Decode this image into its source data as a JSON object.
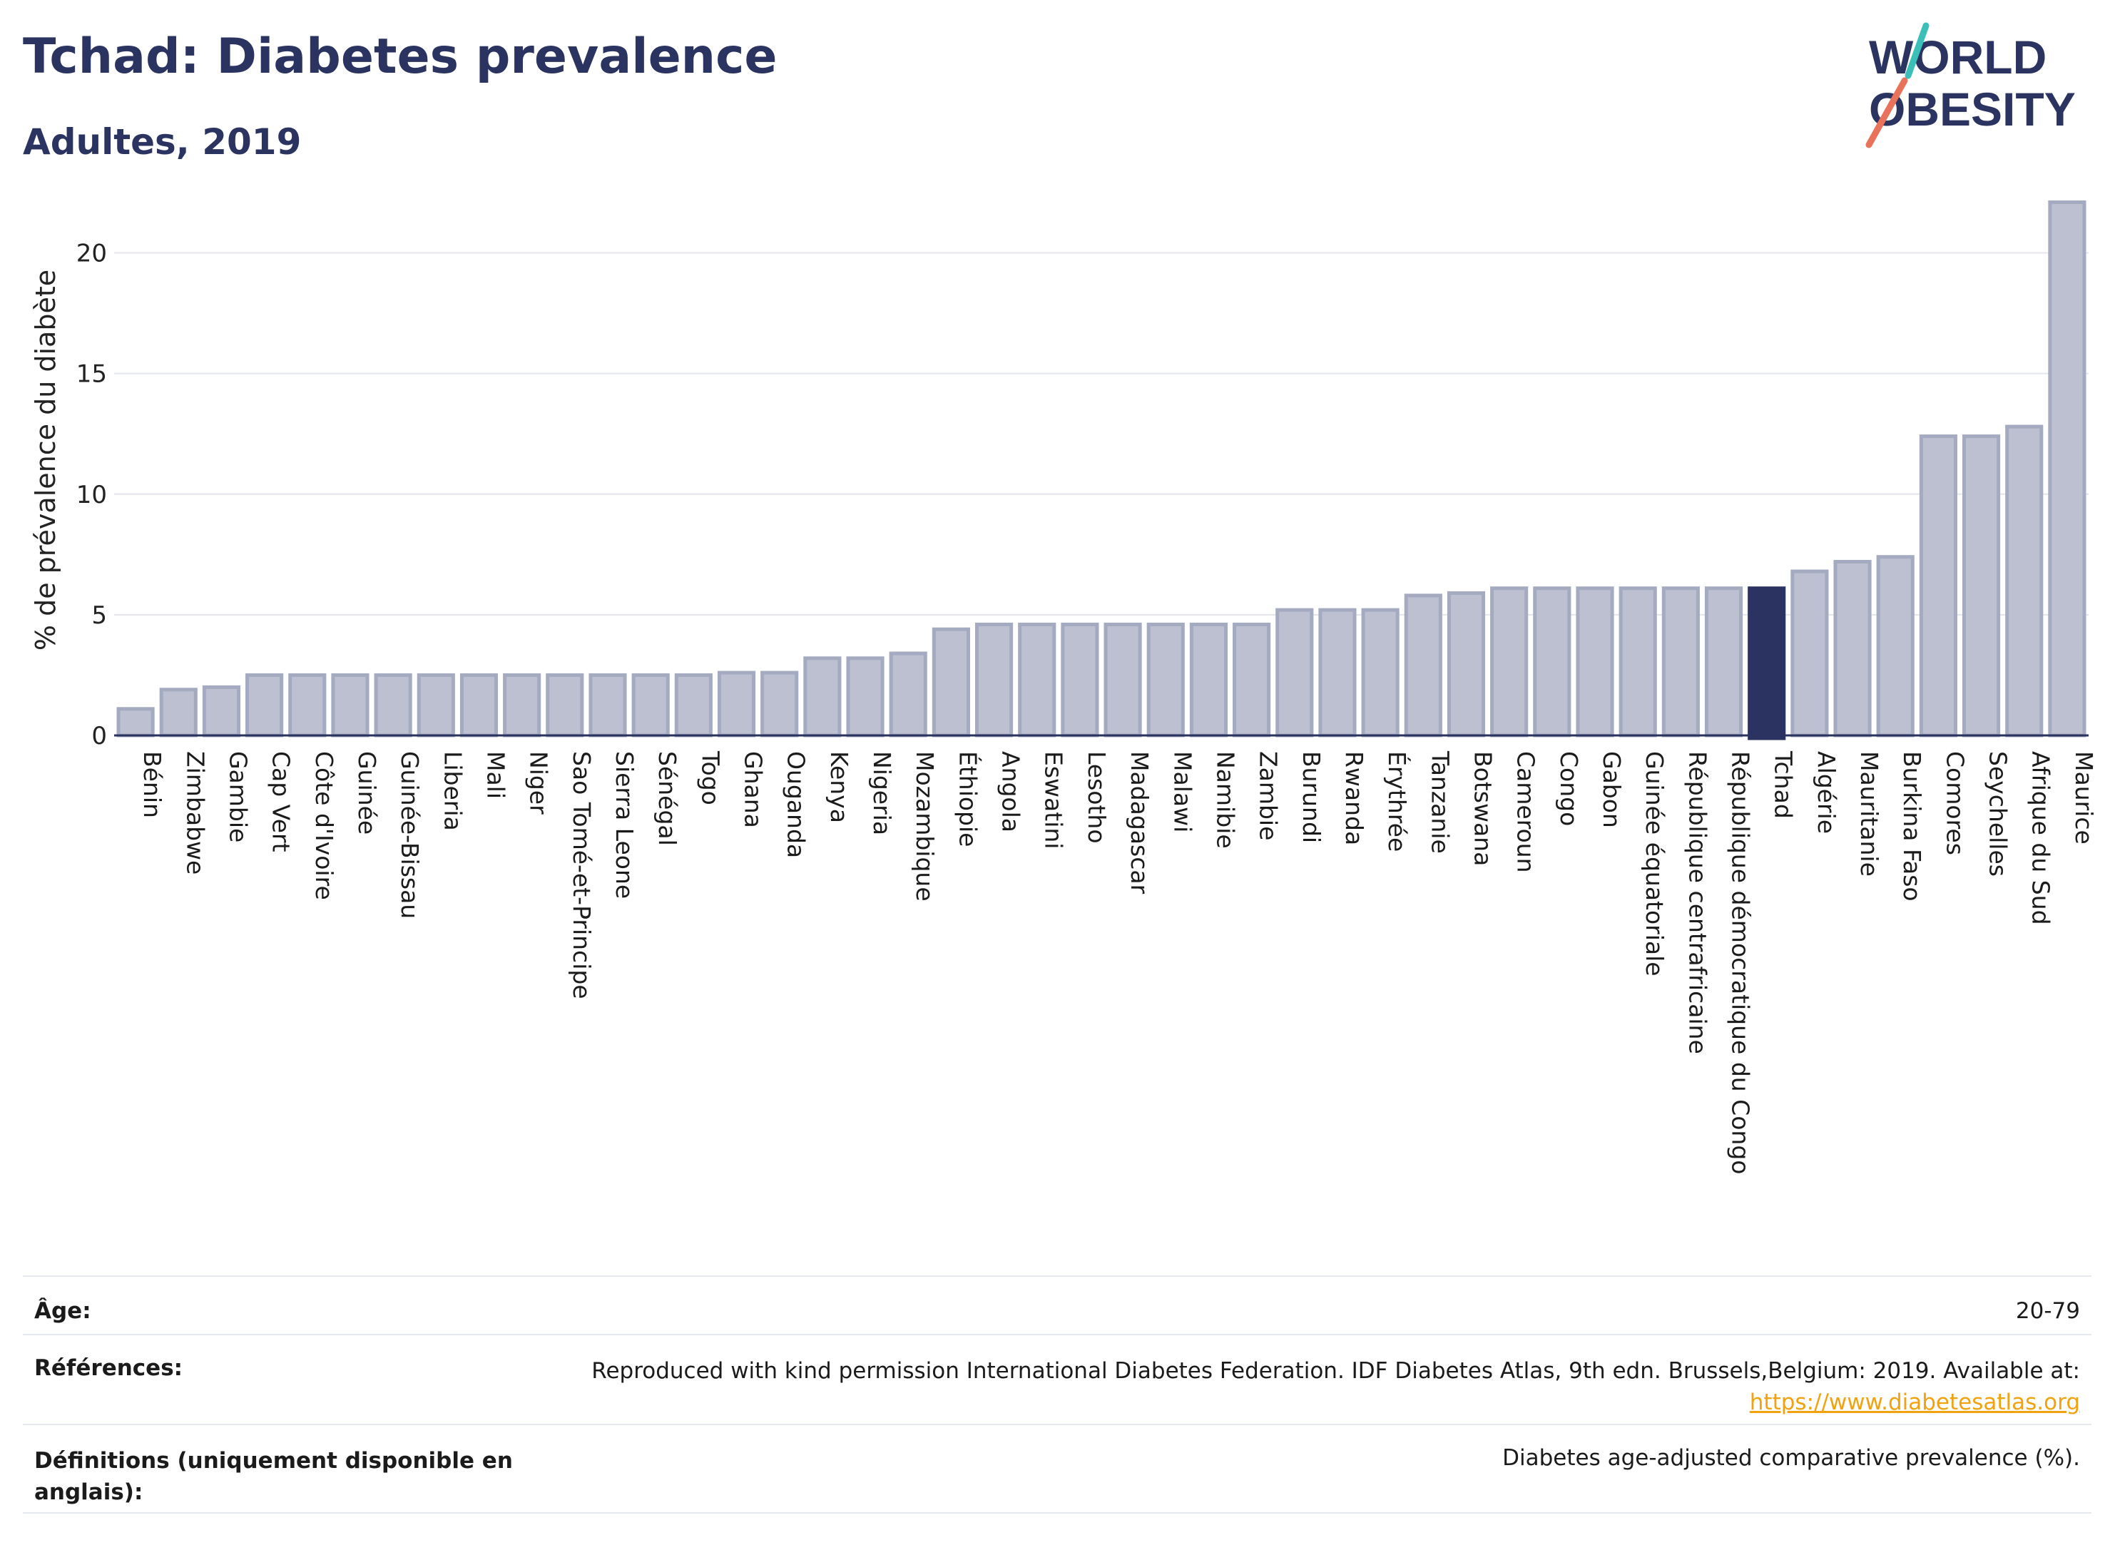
{
  "header": {
    "title": "Tchad: Diabetes prevalence",
    "subtitle": "Adultes, 2019"
  },
  "logo": {
    "line1": "WORLD",
    "line2": "OBESITY"
  },
  "colors": {
    "highlight": "#2b3360",
    "bar_fill": "#bcc0d0",
    "bar_stroke": "#a4aac0",
    "accent_coral": "#e8735a",
    "accent_teal": "#3bbfb8",
    "link": "#f2a20f"
  },
  "chart_data": {
    "type": "bar",
    "ylabel": "% de prévalence du diabète",
    "ylim": [
      0,
      22.5
    ],
    "yticks": [
      0,
      5,
      10,
      15,
      20
    ],
    "grid": true,
    "highlight": "Tchad",
    "categories": [
      "Bénin",
      "Zimbabwe",
      "Gambie",
      "Cap Vert",
      "Côte d'Ivoire",
      "Guinée",
      "Guinée-Bissau",
      "Liberia",
      "Mali",
      "Niger",
      "Sao Tomé-et-Principe",
      "Sierra Leone",
      "Sénégal",
      "Togo",
      "Ghana",
      "Ouganda",
      "Kenya",
      "Nigeria",
      "Mozambique",
      "Éthiopie",
      "Angola",
      "Eswatini",
      "Lesotho",
      "Madagascar",
      "Malawi",
      "Namibie",
      "Zambie",
      "Burundi",
      "Rwanda",
      "Érythrée",
      "Tanzanie",
      "Botswana",
      "Cameroun",
      "Congo",
      "Gabon",
      "Guinée équatoriale",
      "République centrafricaine",
      "République démocratique du Congo",
      "Tchad",
      "Algérie",
      "Mauritanie",
      "Burkina Faso",
      "Comores",
      "Seychelles",
      "Afrique du Sud",
      "Maurice"
    ],
    "values": [
      1.1,
      1.9,
      2.0,
      2.5,
      2.5,
      2.5,
      2.5,
      2.5,
      2.5,
      2.5,
      2.5,
      2.5,
      2.5,
      2.5,
      2.6,
      2.6,
      3.2,
      3.2,
      3.4,
      4.4,
      4.6,
      4.6,
      4.6,
      4.6,
      4.6,
      4.6,
      4.6,
      5.2,
      5.2,
      5.2,
      5.8,
      5.9,
      6.1,
      6.1,
      6.1,
      6.1,
      6.1,
      6.1,
      6.1,
      6.8,
      7.2,
      7.4,
      12.4,
      12.4,
      12.8,
      22.1
    ]
  },
  "info": {
    "age_label": "Âge:",
    "age_value": "20-79",
    "refs_label": "Références:",
    "refs_value": "Reproduced with kind permission International Diabetes Federation. IDF Diabetes Atlas, 9th edn. Brussels,Belgium: 2019. Available at:",
    "refs_link": "https://www.diabetesatlas.org",
    "defs_label": "Définitions (uniquement disponible en anglais):",
    "defs_value": "Diabetes age-adjusted comparative prevalence (%)."
  }
}
